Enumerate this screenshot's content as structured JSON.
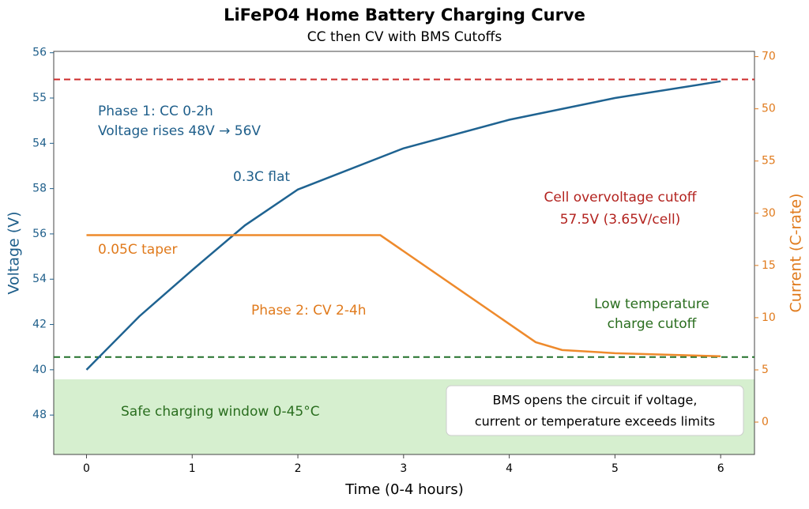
{
  "chart_data": {
    "type": "line",
    "title": "LiFePO4 Home Battery Charging Curve",
    "subtitle": "CC then CV with BMS Cutoffs",
    "xlabel": "Time (0-4 hours)",
    "ylabel": "Voltage (V)",
    "y2label": "Current (C-rate)",
    "xlim": [
      -0.31,
      6.32
    ],
    "xticks": [
      0,
      1,
      2,
      3,
      4,
      5,
      6
    ],
    "ylim": [
      -0.87,
      8.03
    ],
    "yticks": [
      {
        "value": 0,
        "label": "48"
      },
      {
        "value": 1,
        "label": "40"
      },
      {
        "value": 2,
        "label": "42"
      },
      {
        "value": 3,
        "label": "54"
      },
      {
        "value": 4,
        "label": "56"
      },
      {
        "value": 5,
        "label": "58"
      },
      {
        "value": 6,
        "label": "54"
      },
      {
        "value": 7,
        "label": "55"
      },
      {
        "value": 8,
        "label": "56"
      }
    ],
    "y2lim": [
      -0.62,
      7.1
    ],
    "y2ticks": [
      {
        "value": 0,
        "label": "0"
      },
      {
        "value": 1,
        "label": "5"
      },
      {
        "value": 2,
        "label": "10"
      },
      {
        "value": 3,
        "label": "15"
      },
      {
        "value": 4,
        "label": "30"
      },
      {
        "value": 5,
        "label": "55"
      },
      {
        "value": 6,
        "label": "50"
      },
      {
        "value": 7,
        "label": "70"
      }
    ],
    "series": [
      {
        "color": "#1f6391",
        "x": [
          0,
          0.5,
          1,
          1.5,
          2,
          3,
          4,
          5,
          6
        ],
        "values": [
          1.0,
          2.18,
          3.2,
          4.19,
          4.98,
          5.89,
          6.52,
          7.0,
          7.37
        ]
      },
      {
        "color": "#ee8a2c",
        "axis": "y2",
        "x": [
          0,
          2.78,
          4.25,
          4.5,
          5,
          6
        ],
        "values": [
          3.58,
          3.58,
          1.53,
          1.38,
          1.32,
          1.26
        ]
      }
    ],
    "hlines": [
      {
        "value": 7.41,
        "color": "#cc2a2a"
      },
      {
        "value": 1.28,
        "color": "#22712a"
      }
    ],
    "safe_band_top": 0.79,
    "annotations": [
      {
        "text": "Phase 1: CC 0-2h",
        "color": "#1f5f8b"
      },
      {
        "text": "Voltage rises 48V → 56V",
        "color": "#1f5f8b"
      },
      {
        "text": "0.3C flat",
        "color": "#1f5f8b"
      },
      {
        "text": "Cell overvoltage cutoff",
        "color": "#b3231f"
      },
      {
        "text": "57.5V (3.65V/cell)",
        "color": "#b3231f"
      },
      {
        "text": "0.05C taper",
        "color": "#e07a1c"
      },
      {
        "text": "Phase 2: CV 2-4h",
        "color": "#e07a1c"
      },
      {
        "text": "Low temperature",
        "color": "#2a6e1f"
      },
      {
        "text": "charge cutoff",
        "color": "#2a6e1f"
      },
      {
        "text": "Safe charging window 0-45°C",
        "color": "#2a6e1f"
      }
    ],
    "note_box": [
      "BMS opens the circuit if voltage,",
      "current or temperature exceeds limits"
    ]
  }
}
